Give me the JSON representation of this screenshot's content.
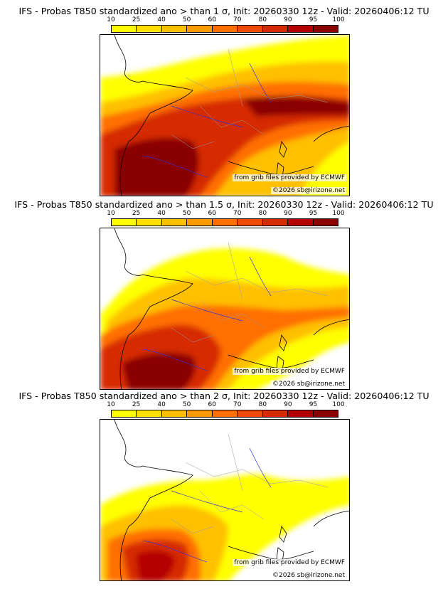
{
  "colorbar": {
    "labels": [
      "10",
      "25",
      "40",
      "50",
      "60",
      "70",
      "80",
      "90",
      "95",
      "100"
    ],
    "colors": [
      "#ffff00",
      "#ffe000",
      "#ffc000",
      "#ff9a00",
      "#ff7000",
      "#f04a00",
      "#d62a00",
      "#b40000",
      "#8a0000"
    ]
  },
  "panels": [
    {
      "title": "IFS - Probas T850  standardized ano > than 1 σ, Init: 20260330 12z - Valid: 20260406:12 TU",
      "credit_source": "from grib files provided by ECMWF",
      "credit_copyright": "©2026 sb@irizone.net"
    },
    {
      "title": "IFS - Probas T850  standardized ano > than 1.5 σ, Init: 20260330 12z - Valid: 20260406:12 TU",
      "credit_source": "from grib files provided by ECMWF",
      "credit_copyright": "©2026 sb@irizone.net"
    },
    {
      "title": "IFS - Probas T850  standardized ano > than 2 σ, Init: 20260330 12z - Valid: 20260406:12 TU",
      "credit_source": "from grib files provided by ECMWF",
      "credit_copyright": "©2026 sb@irizone.net"
    }
  ]
}
